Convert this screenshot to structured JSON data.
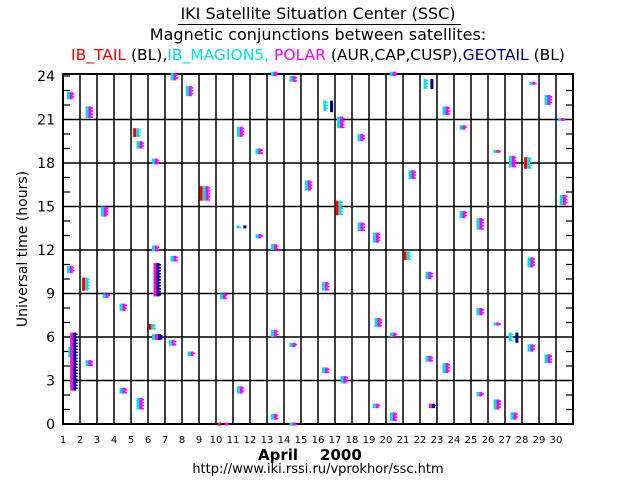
{
  "chart_data": {
    "type": "scatter",
    "title": "IKI Satellite Situation Center (SSC)",
    "subtitle": "Magnetic conjunctions between satellites:",
    "legend": [
      {
        "name": "IB_TAIL",
        "suffix": " (BL),",
        "color": "#ff0000"
      },
      {
        "name": "IB_MAGION5,",
        "suffix": " ",
        "color": "#00e0e0"
      },
      {
        "name": "POLAR",
        "suffix": " (AUR,CAP,CUSP),",
        "color": "#ff00ff"
      },
      {
        "name": "GEOTAIL",
        "suffix": " (BL)",
        "color": "#000080"
      }
    ],
    "xlabel_month": "April",
    "xlabel_year": "2000",
    "ylabel": "Universal time (hours)",
    "xlim": [
      1,
      31
    ],
    "ylim": [
      0,
      24
    ],
    "x_ticks": [
      "1",
      "2",
      "3",
      "4",
      "5",
      "6",
      "7",
      "8",
      "9",
      "10",
      "11",
      "12",
      "13",
      "14",
      "15",
      "16",
      "17",
      "18",
      "19",
      "20",
      "21",
      "22",
      "23",
      "24",
      "25",
      "26",
      "27",
      "28",
      "29",
      "30"
    ],
    "y_ticks": [
      "0",
      "3",
      "6",
      "9",
      "12",
      "15",
      "18",
      "21",
      "24"
    ],
    "grid": true,
    "events": [
      {
        "day": 1.4,
        "h": [
          22.4,
          22.9
        ],
        "sats": "cm"
      },
      {
        "day": 1.4,
        "h": [
          10.4,
          10.9
        ],
        "sats": "cm"
      },
      {
        "day": 1.4,
        "h": [
          4.6,
          5.3
        ],
        "sats": "c"
      },
      {
        "day": 1.6,
        "h": [
          2.3,
          6.3
        ],
        "sats": "mn"
      },
      {
        "day": 2.5,
        "h": [
          21.1,
          21.9
        ],
        "sats": "cm"
      },
      {
        "day": 2.3,
        "h": [
          9.2,
          10.1
        ],
        "sats": "rc"
      },
      {
        "day": 2.5,
        "h": [
          4.0,
          4.4
        ],
        "sats": "cm"
      },
      {
        "day": 3.4,
        "h": [
          14.3,
          15.0
        ],
        "sats": "cm"
      },
      {
        "day": 3.5,
        "h": [
          8.7,
          9.0
        ],
        "sats": "cm"
      },
      {
        "day": 4.5,
        "h": [
          7.8,
          8.3
        ],
        "sats": "cm"
      },
      {
        "day": 4.5,
        "h": [
          2.1,
          2.5
        ],
        "sats": "cm"
      },
      {
        "day": 5.3,
        "h": [
          19.8,
          20.4
        ],
        "sats": "rc"
      },
      {
        "day": 5.5,
        "h": [
          19.0,
          19.5
        ],
        "sats": "cm"
      },
      {
        "day": 5.5,
        "h": [
          1.0,
          1.8
        ],
        "sats": "cm"
      },
      {
        "day": 6.4,
        "h": [
          17.9,
          18.3
        ],
        "sats": "cm"
      },
      {
        "day": 6.4,
        "h": [
          11.9,
          12.3
        ],
        "sats": "cm"
      },
      {
        "day": 6.5,
        "h": [
          8.8,
          11.1
        ],
        "sats": "mn"
      },
      {
        "day": 6.2,
        "h": [
          6.5,
          6.9
        ],
        "sats": "rc"
      },
      {
        "day": 6.5,
        "h": [
          5.8,
          6.2
        ],
        "sats": "cmn"
      },
      {
        "day": 7.5,
        "h": [
          23.7,
          24.2
        ],
        "sats": "cm"
      },
      {
        "day": 7.5,
        "h": [
          11.2,
          11.6
        ],
        "sats": "cm"
      },
      {
        "day": 7.4,
        "h": [
          5.4,
          5.8
        ],
        "sats": "cm"
      },
      {
        "day": 8.4,
        "h": [
          22.6,
          23.3
        ],
        "sats": "cm"
      },
      {
        "day": 8.5,
        "h": [
          4.7,
          5.0
        ],
        "sats": "cm"
      },
      {
        "day": 9.3,
        "h": [
          15.4,
          16.4
        ],
        "sats": "rcm"
      },
      {
        "day": 10.4,
        "h": [
          8.6,
          9.0
        ],
        "sats": "cm"
      },
      {
        "day": 10.2,
        "h": [
          -0.1,
          0.1
        ],
        "sats": "r"
      },
      {
        "day": 10.6,
        "h": [
          -0.1,
          0.1
        ],
        "sats": "m"
      },
      {
        "day": 11.4,
        "h": [
          19.8,
          20.5
        ],
        "sats": "cm"
      },
      {
        "day": 11.3,
        "h": [
          13.6,
          13.7
        ],
        "sats": "c"
      },
      {
        "day": 11.7,
        "h": [
          13.6,
          13.7
        ],
        "sats": "n"
      },
      {
        "day": 11.4,
        "h": [
          2.1,
          2.6
        ],
        "sats": "cm"
      },
      {
        "day": 12.5,
        "h": [
          18.6,
          19.0
        ],
        "sats": "cm"
      },
      {
        "day": 12.5,
        "h": [
          12.8,
          13.1
        ],
        "sats": "cm"
      },
      {
        "day": 13.4,
        "h": [
          24.0,
          24.3
        ],
        "sats": "cm"
      },
      {
        "day": 13.4,
        "h": [
          12.0,
          12.4
        ],
        "sats": "cm"
      },
      {
        "day": 13.4,
        "h": [
          6.0,
          6.5
        ],
        "sats": "cm"
      },
      {
        "day": 13.4,
        "h": [
          0.3,
          0.7
        ],
        "sats": "cm"
      },
      {
        "day": 14.5,
        "h": [
          23.6,
          24.0
        ],
        "sats": "cm"
      },
      {
        "day": 14.5,
        "h": [
          5.3,
          5.6
        ],
        "sats": "cm"
      },
      {
        "day": 14.5,
        "h": [
          -0.1,
          0.1
        ],
        "sats": "cm"
      },
      {
        "day": 15.4,
        "h": [
          16.1,
          16.8
        ],
        "sats": "cm"
      },
      {
        "day": 16.4,
        "h": [
          21.6,
          22.3
        ],
        "sats": "c"
      },
      {
        "day": 16.8,
        "h": [
          21.5,
          22.3
        ],
        "sats": "n"
      },
      {
        "day": 16.4,
        "h": [
          9.2,
          9.8
        ],
        "sats": "cm"
      },
      {
        "day": 16.4,
        "h": [
          3.5,
          3.9
        ],
        "sats": "cm"
      },
      {
        "day": 17.3,
        "h": [
          20.4,
          21.2
        ],
        "sats": "cm"
      },
      {
        "day": 17.2,
        "h": [
          14.4,
          15.4
        ],
        "sats": "rc"
      },
      {
        "day": 17.5,
        "h": [
          2.8,
          3.3
        ],
        "sats": "cm"
      },
      {
        "day": 18.5,
        "h": [
          19.5,
          20.0
        ],
        "sats": "cm"
      },
      {
        "day": 18.5,
        "h": [
          13.3,
          13.9
        ],
        "sats": "cm"
      },
      {
        "day": 19.4,
        "h": [
          12.5,
          13.2
        ],
        "sats": "cm"
      },
      {
        "day": 19.5,
        "h": [
          6.7,
          7.3
        ],
        "sats": "cm"
      },
      {
        "day": 19.4,
        "h": [
          1.1,
          1.4
        ],
        "sats": "cm"
      },
      {
        "day": 20.4,
        "h": [
          24.0,
          24.5
        ],
        "sats": "cm"
      },
      {
        "day": 20.4,
        "h": [
          6.0,
          6.3
        ],
        "sats": "cm"
      },
      {
        "day": 20.4,
        "h": [
          0.2,
          0.8
        ],
        "sats": "cm"
      },
      {
        "day": 21.2,
        "h": [
          11.3,
          11.9
        ],
        "sats": "rc"
      },
      {
        "day": 21.5,
        "h": [
          16.9,
          17.5
        ],
        "sats": "cm"
      },
      {
        "day": 22.3,
        "h": [
          23.1,
          23.8
        ],
        "sats": "c"
      },
      {
        "day": 22.7,
        "h": [
          23.1,
          23.8
        ],
        "sats": "n"
      },
      {
        "day": 22.5,
        "h": [
          10.0,
          10.5
        ],
        "sats": "cm"
      },
      {
        "day": 22.5,
        "h": [
          4.3,
          4.7
        ],
        "sats": "cm"
      },
      {
        "day": 22.7,
        "h": [
          1.1,
          1.4
        ],
        "sats": "mn"
      },
      {
        "day": 23.5,
        "h": [
          21.3,
          21.9
        ],
        "sats": "cm"
      },
      {
        "day": 23.5,
        "h": [
          3.5,
          4.2
        ],
        "sats": "cm"
      },
      {
        "day": 24.5,
        "h": [
          20.3,
          20.6
        ],
        "sats": "cm"
      },
      {
        "day": 24.5,
        "h": [
          14.2,
          14.7
        ],
        "sats": "cm"
      },
      {
        "day": 25.5,
        "h": [
          13.4,
          14.2
        ],
        "sats": "cm"
      },
      {
        "day": 25.5,
        "h": [
          7.5,
          8.0
        ],
        "sats": "cm"
      },
      {
        "day": 25.5,
        "h": [
          1.9,
          2.2
        ],
        "sats": "cm"
      },
      {
        "day": 26.5,
        "h": [
          18.7,
          18.9
        ],
        "sats": "cm"
      },
      {
        "day": 26.5,
        "h": [
          6.8,
          7.0
        ],
        "sats": "cm"
      },
      {
        "day": 26.5,
        "h": [
          1.0,
          1.7
        ],
        "sats": "cm"
      },
      {
        "day": 27.4,
        "h": [
          17.7,
          18.5
        ],
        "sats": "cm"
      },
      {
        "day": 27.3,
        "h": [
          5.7,
          6.3
        ],
        "sats": "c"
      },
      {
        "day": 27.7,
        "h": [
          5.6,
          6.3
        ],
        "sats": "n"
      },
      {
        "day": 27.5,
        "h": [
          0.3,
          0.8
        ],
        "sats": "cm"
      },
      {
        "day": 28.3,
        "h": [
          17.6,
          18.4
        ],
        "sats": "rc"
      },
      {
        "day": 28.5,
        "h": [
          10.8,
          11.5
        ],
        "sats": "cm"
      },
      {
        "day": 28.5,
        "h": [
          5.0,
          5.5
        ],
        "sats": "cm"
      },
      {
        "day": 28.6,
        "h": [
          23.4,
          23.6
        ],
        "sats": "cm"
      },
      {
        "day": 29.5,
        "h": [
          22.0,
          22.7
        ],
        "sats": "cm"
      },
      {
        "day": 29.5,
        "h": [
          4.2,
          4.8
        ],
        "sats": "cm"
      },
      {
        "day": 30.3,
        "h": [
          20.9,
          21.1
        ],
        "sats": "cm"
      },
      {
        "day": 30.4,
        "h": [
          15.1,
          15.8
        ],
        "sats": "cm"
      }
    ]
  },
  "footer": {
    "url": "http://www.iki.rssi.ru/vprokhor/ssc.htm"
  }
}
